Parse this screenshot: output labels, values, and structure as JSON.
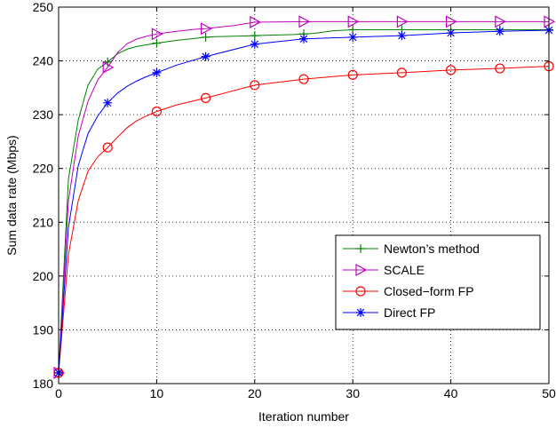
{
  "chart_data": {
    "type": "line",
    "title": "",
    "xlabel": "Iteration number",
    "ylabel": "Sum data rate (Mbps)",
    "xlim": [
      0,
      50
    ],
    "ylim": [
      180,
      250
    ],
    "xticks": [
      0,
      10,
      20,
      30,
      40,
      50
    ],
    "yticks": [
      180,
      190,
      200,
      210,
      220,
      230,
      240,
      250
    ],
    "grid": true,
    "legend_position": "lower-right",
    "series": [
      {
        "name": "Newton’s method",
        "color": "#008000",
        "marker": "plus",
        "x": [
          0,
          1,
          2,
          3,
          4,
          5,
          6,
          7,
          8,
          9,
          10,
          12,
          14,
          15,
          16,
          18,
          20,
          22,
          24,
          25,
          26,
          28,
          30,
          35,
          40,
          45,
          50
        ],
        "y": [
          182,
          218,
          229,
          235.5,
          238.5,
          239.8,
          241.3,
          242.2,
          242.7,
          243.0,
          243.3,
          243.8,
          244.2,
          244.4,
          244.5,
          244.6,
          244.7,
          244.8,
          244.9,
          245.0,
          245.1,
          245.6,
          245.8,
          245.8,
          245.8,
          245.8,
          245.8
        ],
        "marker_x": [
          0,
          5,
          10,
          15,
          20,
          25,
          30,
          35,
          40,
          45,
          50
        ]
      },
      {
        "name": "SCALE",
        "color": "#bf00bf",
        "marker": "triangle-right",
        "x": [
          0,
          1,
          2,
          3,
          4,
          5,
          6,
          7,
          8,
          9,
          10,
          12,
          14,
          15,
          16,
          18,
          20,
          25,
          30,
          35,
          40,
          45,
          50
        ],
        "y": [
          182,
          214,
          226,
          232.5,
          236.5,
          238.8,
          241.5,
          243.2,
          244.1,
          244.6,
          245.0,
          245.5,
          245.9,
          246.0,
          246.2,
          246.6,
          247.2,
          247.3,
          247.3,
          247.3,
          247.3,
          247.3,
          247.3
        ],
        "marker_x": [
          0,
          5,
          10,
          15,
          20,
          25,
          30,
          35,
          40,
          45,
          50
        ]
      },
      {
        "name": "Closed−form FP",
        "color": "#ff0000",
        "marker": "circle",
        "x": [
          0,
          1,
          2,
          3,
          4,
          5,
          6,
          7,
          8,
          9,
          10,
          12,
          15,
          20,
          25,
          30,
          35,
          40,
          45,
          50
        ],
        "y": [
          182,
          204,
          214,
          219.5,
          222.2,
          223.9,
          225.8,
          227.6,
          228.9,
          229.8,
          230.6,
          231.8,
          233.1,
          235.5,
          236.6,
          237.4,
          237.8,
          238.3,
          238.6,
          239.0
        ],
        "marker_x": [
          0,
          5,
          10,
          15,
          20,
          25,
          30,
          35,
          40,
          45,
          50
        ]
      },
      {
        "name": "Direct FP",
        "color": "#0000ff",
        "marker": "asterisk",
        "x": [
          0,
          1,
          2,
          3,
          4,
          5,
          6,
          7,
          8,
          9,
          10,
          12,
          15,
          20,
          25,
          30,
          35,
          40,
          45,
          50
        ],
        "y": [
          182,
          209,
          220.5,
          226.5,
          229.8,
          232.2,
          234.0,
          235.3,
          236.3,
          237.1,
          237.8,
          239.2,
          240.8,
          243.1,
          244.1,
          244.4,
          244.7,
          245.2,
          245.5,
          245.7
        ],
        "marker_x": [
          0,
          5,
          10,
          15,
          20,
          25,
          30,
          35,
          40,
          45,
          50
        ]
      }
    ]
  }
}
